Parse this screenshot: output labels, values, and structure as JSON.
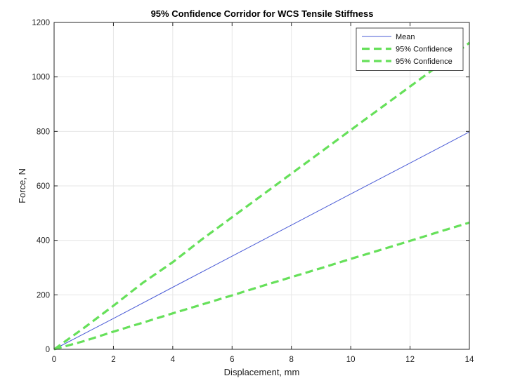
{
  "chart_data": {
    "type": "line",
    "title": "95% Confidence Corridor for WCS Tensile Stiffness",
    "xlabel": "Displacement, mm",
    "ylabel": "Force, N",
    "xlim": [
      0,
      14
    ],
    "ylim": [
      0,
      1200
    ],
    "xticks": [
      0,
      2,
      4,
      6,
      8,
      10,
      12,
      14
    ],
    "yticks": [
      0,
      200,
      400,
      600,
      800,
      1000,
      1200
    ],
    "grid": true,
    "legend_position": "top-right",
    "series": [
      {
        "name": "Mean",
        "color": "#4a5bd6",
        "style": "solid",
        "x": [
          0,
          2,
          4,
          6,
          8,
          10,
          12,
          14
        ],
        "y": [
          0,
          113,
          228,
          342,
          456,
          570,
          684,
          798
        ]
      },
      {
        "name": "95% Confidence",
        "color": "#66e05a",
        "style": "dashed",
        "x": [
          0,
          1,
          2,
          3,
          4,
          5,
          6,
          7,
          8,
          9,
          10,
          11,
          12,
          13,
          14
        ],
        "y": [
          0,
          78,
          160,
          245,
          320,
          405,
          485,
          565,
          645,
          725,
          805,
          885,
          965,
          1045,
          1125
        ]
      },
      {
        "name": "95% Confidence",
        "color": "#66e05a",
        "style": "dashed",
        "x": [
          0,
          1,
          2,
          3,
          4,
          5,
          6,
          7,
          8,
          9,
          10,
          11,
          12,
          13,
          14
        ],
        "y": [
          0,
          30,
          65,
          98,
          132,
          165,
          198,
          232,
          265,
          298,
          332,
          365,
          398,
          432,
          465
        ]
      }
    ]
  }
}
